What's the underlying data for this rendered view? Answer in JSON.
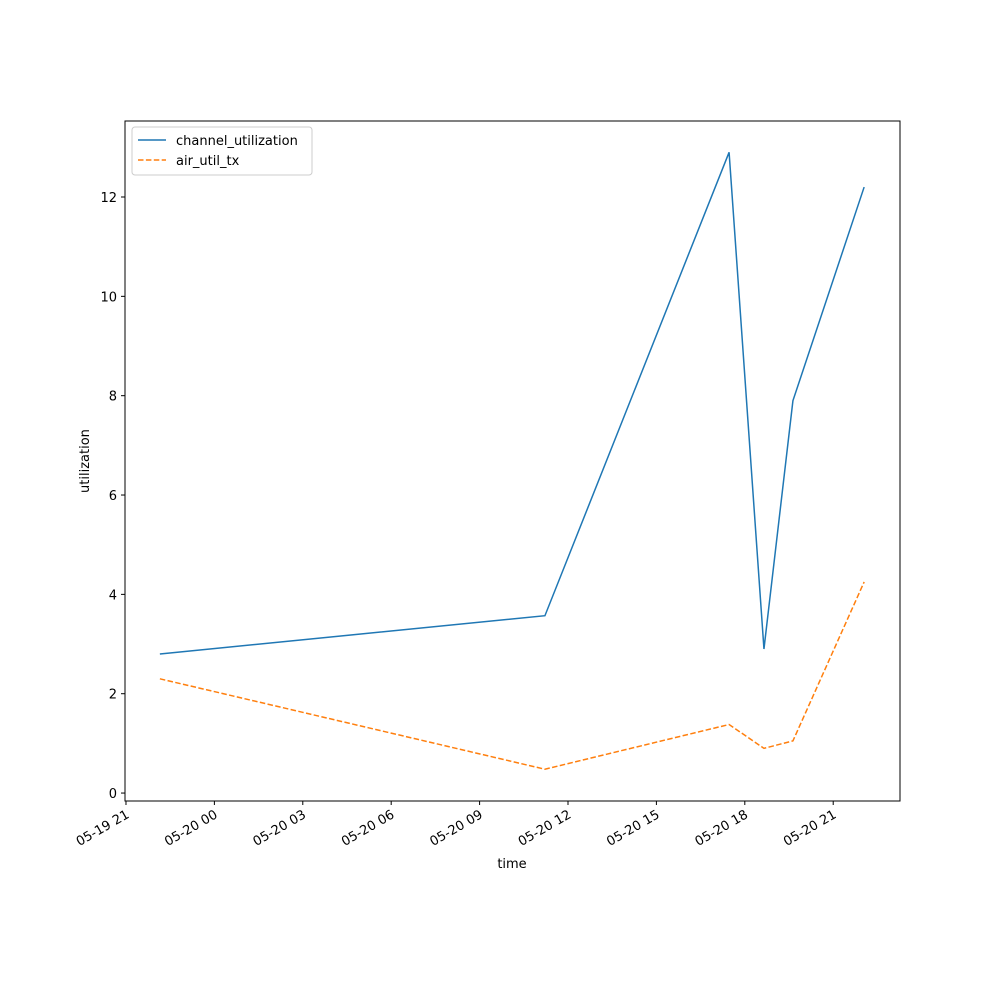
{
  "chart_data": {
    "type": "line",
    "x_label": "time",
    "y_label": "utilization",
    "x": [
      "05-19 22:09",
      "05-20 11:13",
      "05-20 17:28",
      "05-20 18:39",
      "05-20 19:38",
      "05-20 22:03"
    ],
    "series": [
      {
        "name": "channel_utilization",
        "color": "#1f77b4",
        "dash": "solid",
        "values": [
          2.8,
          3.57,
          12.9,
          2.9,
          7.9,
          12.2
        ]
      },
      {
        "name": "air_util_tx",
        "color": "#ff7f0e",
        "dash": "dashed",
        "values": [
          2.3,
          0.48,
          1.38,
          0.9,
          1.05,
          4.25
        ]
      }
    ],
    "xlim": [
      "05-19 20:58",
      "05-20 23:16"
    ],
    "xticks": [
      "05-19 21",
      "05-20 00",
      "05-20 03",
      "05-20 06",
      "05-20 09",
      "05-20 12",
      "05-20 15",
      "05-20 18",
      "05-20 21"
    ],
    "ylim": [
      -0.16,
      13.53
    ],
    "yticks": [
      0,
      2,
      4,
      6,
      8,
      10,
      12
    ],
    "legend": "upper left"
  }
}
